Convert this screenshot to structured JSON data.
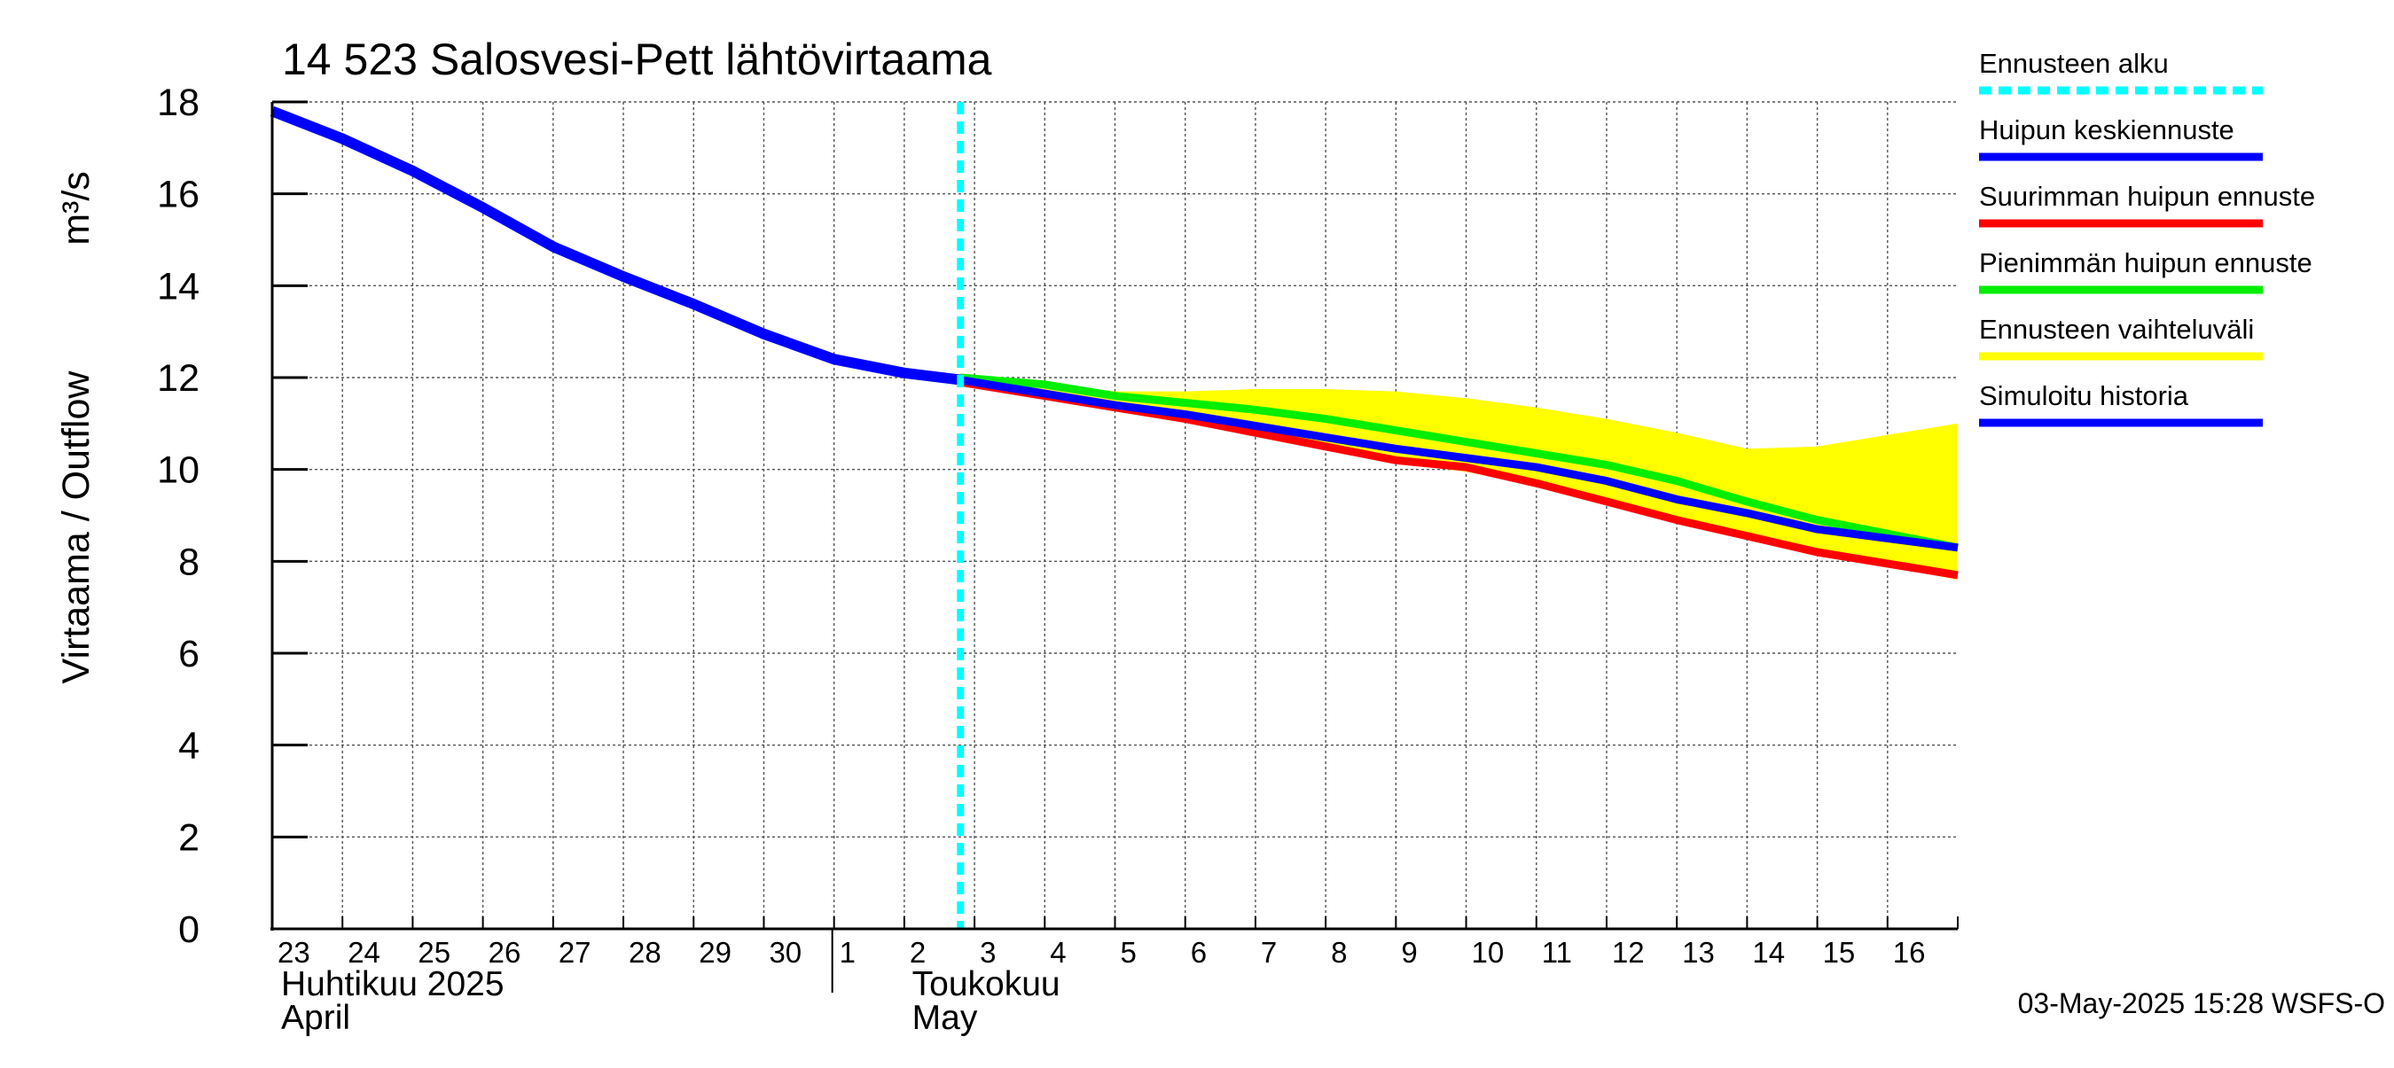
{
  "chart_data": {
    "type": "line",
    "title": "14 523 Salosvesi-Pett lähtövirtaama",
    "ylabel_parts": [
      "Virtaama / Outflow",
      "m³/s"
    ],
    "ylim": [
      0,
      18
    ],
    "yticks": [
      0,
      2,
      4,
      6,
      8,
      10,
      12,
      14,
      16,
      18
    ],
    "grid": true,
    "x_start_day": "2025-04-23",
    "x_day_span": 24,
    "x_tick_labels": [
      "23",
      "24",
      "25",
      "26",
      "27",
      "28",
      "29",
      "30",
      "1",
      "2",
      "3",
      "4",
      "5",
      "6",
      "7",
      "8",
      "9",
      "10",
      "11",
      "12",
      "13",
      "14",
      "15",
      "16"
    ],
    "month_labels": [
      {
        "line1": "Huhtikuu  2025",
        "line2": "April",
        "start_day_index": 0
      },
      {
        "line1": "Toukokuu",
        "line2": "May",
        "start_day_index": 8
      }
    ],
    "forecast_start": "2025-05-02T18:00",
    "forecast_start_day_offset": 9.8,
    "legend_position": "right",
    "footer": "03-May-2025 15:28 WSFS-O",
    "series": [
      {
        "name": "Simuloitu historia",
        "role": "history",
        "color": "#0000ff",
        "x": [
          0,
          1,
          2,
          3,
          4,
          5,
          6,
          7,
          8,
          9,
          9.8
        ],
        "y": [
          17.8,
          17.2,
          16.5,
          15.7,
          14.85,
          14.2,
          13.6,
          12.95,
          12.4,
          12.1,
          11.95
        ]
      },
      {
        "name": "Ennusteen vaihteluväli",
        "role": "band",
        "color": "#ffff00",
        "x": [
          9.8,
          11,
          12,
          13,
          14,
          15,
          16,
          17,
          18,
          19,
          20,
          21,
          22,
          23,
          24
        ],
        "upper": [
          12.0,
          11.85,
          11.7,
          11.7,
          11.75,
          11.75,
          11.7,
          11.55,
          11.35,
          11.1,
          10.8,
          10.45,
          10.5,
          10.75,
          11.0
        ],
        "lower": [
          11.9,
          11.6,
          11.35,
          11.1,
          10.8,
          10.5,
          10.15,
          9.95,
          9.65,
          9.25,
          8.85,
          8.5,
          8.15,
          7.9,
          7.6
        ]
      },
      {
        "name": "Pienimmän huipun ennuste",
        "role": "min_peak",
        "color": "#00ee00",
        "x": [
          9.8,
          11,
          12,
          13,
          14,
          15,
          16,
          17,
          18,
          19,
          20,
          21,
          22,
          23,
          24
        ],
        "y": [
          12.0,
          11.85,
          11.6,
          11.45,
          11.3,
          11.1,
          10.85,
          10.6,
          10.35,
          10.1,
          9.75,
          9.3,
          8.9,
          8.6,
          8.3
        ]
      },
      {
        "name": "Suurimman huipun ennuste",
        "role": "max_peak",
        "color": "#ff0000",
        "x": [
          9.8,
          11,
          12,
          13,
          14,
          15,
          16,
          17,
          18,
          19,
          20,
          21,
          22,
          23,
          24
        ],
        "y": [
          11.9,
          11.6,
          11.35,
          11.1,
          10.8,
          10.5,
          10.2,
          10.05,
          9.7,
          9.3,
          8.9,
          8.55,
          8.2,
          7.95,
          7.7
        ]
      },
      {
        "name": "Huipun keskiennuste",
        "role": "mean_peak",
        "color": "#0000ff",
        "x": [
          9.8,
          11,
          12,
          13,
          14,
          15,
          16,
          17,
          18,
          19,
          20,
          21,
          22,
          23,
          24
        ],
        "y": [
          11.95,
          11.65,
          11.4,
          11.2,
          10.95,
          10.7,
          10.45,
          10.25,
          10.05,
          9.75,
          9.35,
          9.05,
          8.7,
          8.5,
          8.3
        ]
      }
    ]
  },
  "legend": [
    {
      "label": "Ennusteen alku",
      "color": "#00ffff",
      "style": "dashed"
    },
    {
      "label": "Huipun keskiennuste",
      "color": "#0000ff",
      "style": "solid"
    },
    {
      "label": "Suurimman huipun ennuste",
      "color": "#ff0000",
      "style": "solid"
    },
    {
      "label": "Pienimmän huipun ennuste",
      "color": "#00ee00",
      "style": "solid"
    },
    {
      "label": "Ennusteen vaihteluväli",
      "color": "#ffff00",
      "style": "solid"
    },
    {
      "label": "Simuloitu historia",
      "color": "#0000ff",
      "style": "solid"
    }
  ]
}
